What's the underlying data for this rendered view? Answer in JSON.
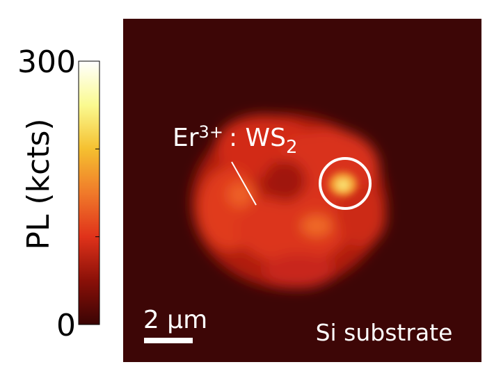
{
  "chart_data": {
    "type": "heatmap",
    "colorbar": {
      "label": "PL (kcts)",
      "lim": [
        0,
        300
      ],
      "ticks": [
        0,
        300
      ],
      "minor_ticks": [
        100,
        200
      ],
      "colors": [
        "#3a0404",
        "#8a1008",
        "#e0321a",
        "#f07a2a",
        "#f5c030",
        "#fafa90",
        "#ffffff"
      ]
    },
    "annotations": {
      "sample": {
        "base": "Er",
        "sup": "3+",
        "mid": ": WS",
        "sub": "2"
      },
      "scale_bar": "2 μm",
      "substrate": "Si substrate"
    }
  }
}
